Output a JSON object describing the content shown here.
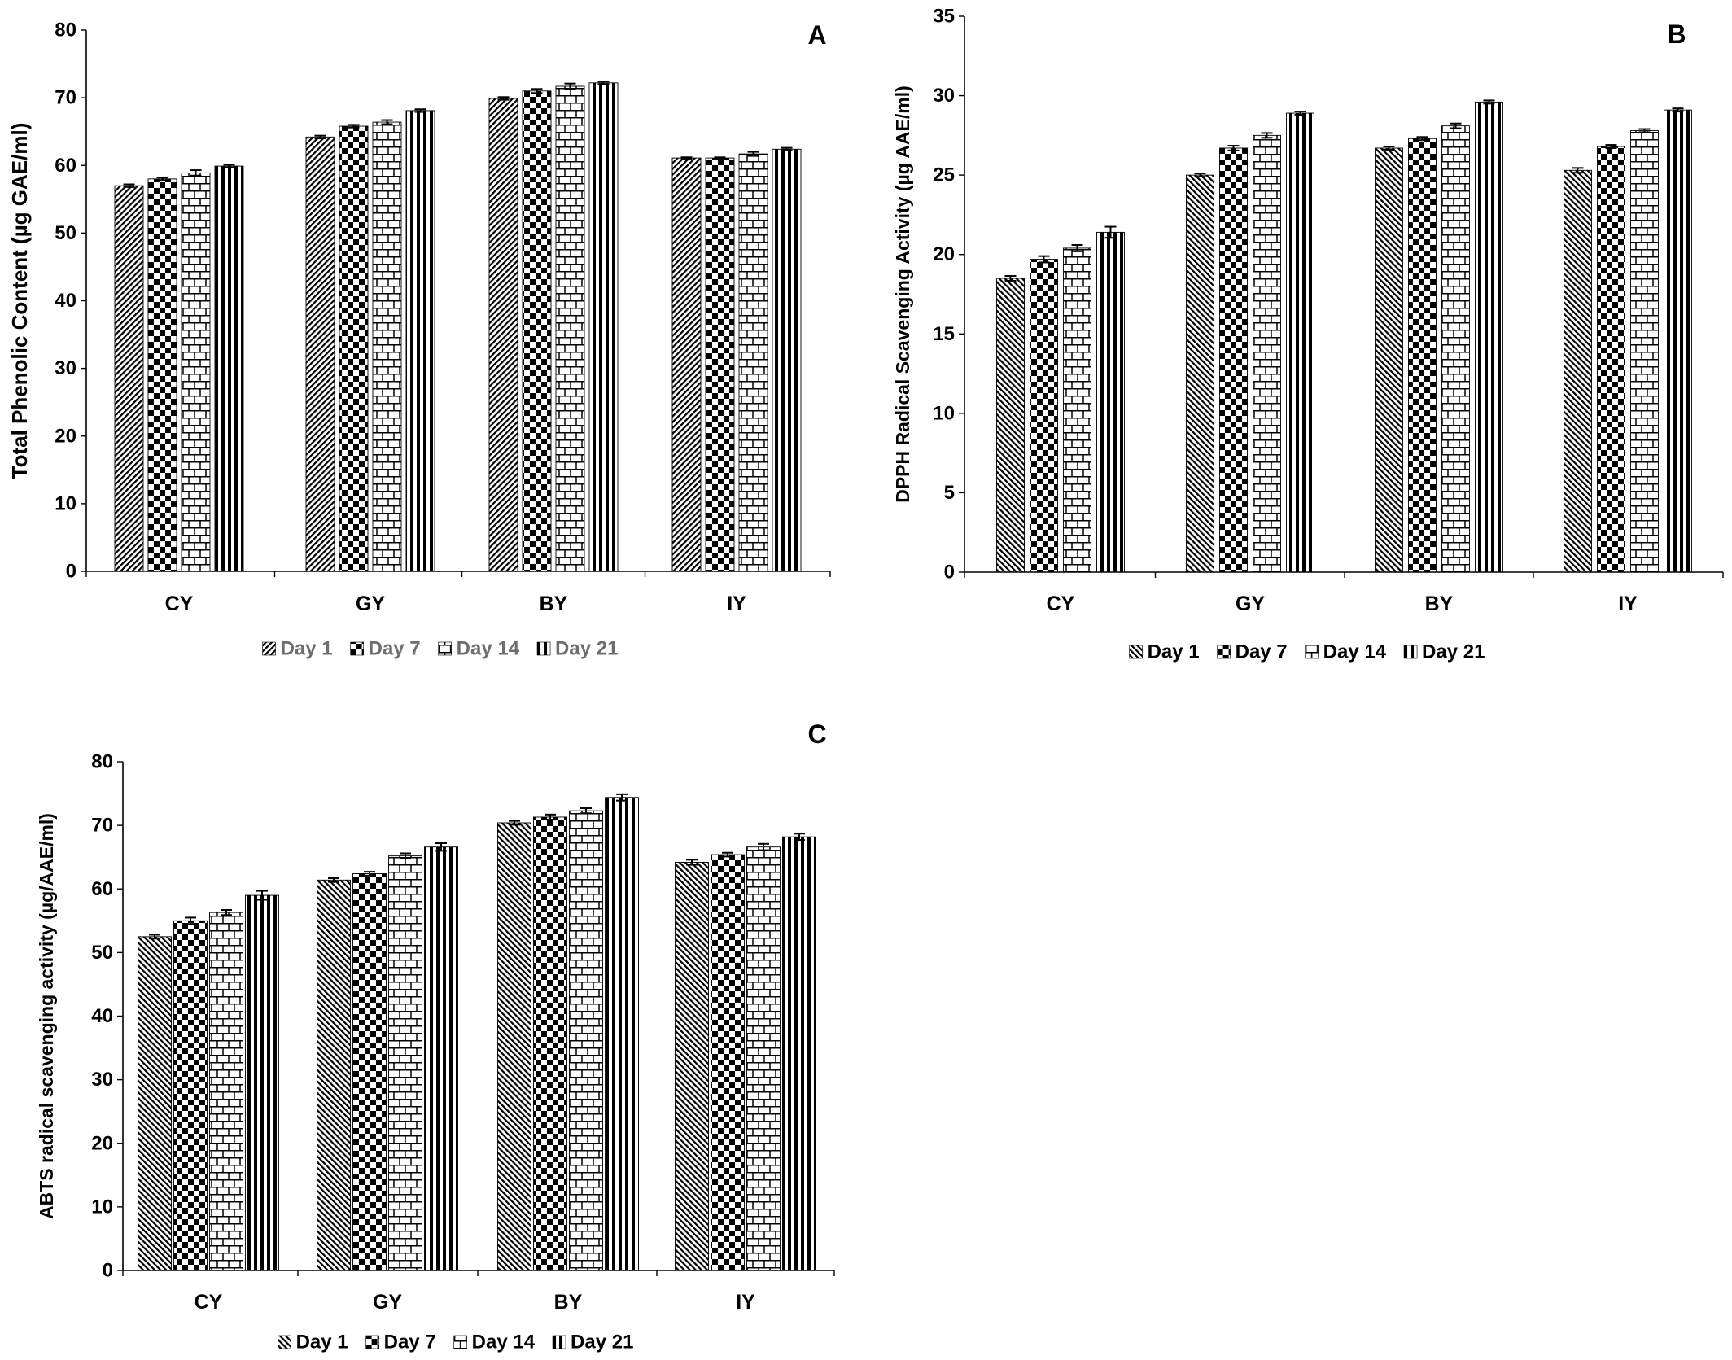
{
  "colors": {
    "background": "#ffffff",
    "axis": "#000000",
    "bar_outline": "#000000",
    "pattern_ink": "#000000"
  },
  "chart_data": [
    {
      "type": "bar",
      "panel_label": "A",
      "ylabel": "Total Phenolic Content (µg GAE/ml)",
      "categories": [
        "CY",
        "GY",
        "BY",
        "IY"
      ],
      "ylim": [
        0,
        80
      ],
      "yticks": [
        0,
        10,
        20,
        30,
        40,
        50,
        60,
        70,
        80
      ],
      "grid": false,
      "legend": "bottom",
      "legend_text_color": "#6e6e6e",
      "series": [
        {
          "name": "Day 1",
          "pattern": "forward-diagonal",
          "values": [
            57.0,
            64.2,
            69.9,
            61.1
          ],
          "errors": [
            0.2,
            0.2,
            0.2,
            0.1
          ]
        },
        {
          "name": "Day 7",
          "pattern": "checkerboard",
          "values": [
            58.0,
            65.8,
            71.0,
            61.1
          ],
          "errors": [
            0.2,
            0.2,
            0.3,
            0.1
          ]
        },
        {
          "name": "Day 14",
          "pattern": "brick",
          "values": [
            58.9,
            66.4,
            71.7,
            61.7
          ],
          "errors": [
            0.4,
            0.3,
            0.4,
            0.3
          ]
        },
        {
          "name": "Day 21",
          "pattern": "vertical-stripes",
          "values": [
            59.9,
            68.1,
            72.2,
            62.4
          ],
          "errors": [
            0.2,
            0.2,
            0.2,
            0.2
          ]
        }
      ]
    },
    {
      "type": "bar",
      "panel_label": "B",
      "ylabel": "DPPH Radical Scavenging Activity (µg AAE/ml)",
      "categories": [
        "CY",
        "GY",
        "BY",
        "IY"
      ],
      "ylim": [
        0,
        35
      ],
      "yticks": [
        0,
        5,
        10,
        15,
        20,
        25,
        30,
        35
      ],
      "grid": false,
      "legend": "bottom",
      "legend_text_color": "#000000",
      "series": [
        {
          "name": "Day 1",
          "pattern": "backward-diagonal",
          "values": [
            18.5,
            25.0,
            26.7,
            25.3
          ],
          "errors": [
            0.15,
            0.1,
            0.1,
            0.15
          ]
        },
        {
          "name": "Day 7",
          "pattern": "checkerboard",
          "values": [
            19.7,
            26.7,
            27.3,
            26.8
          ],
          "errors": [
            0.2,
            0.15,
            0.1,
            0.1
          ]
        },
        {
          "name": "Day 14",
          "pattern": "brick",
          "values": [
            20.4,
            27.5,
            28.1,
            27.8
          ],
          "errors": [
            0.2,
            0.15,
            0.15,
            0.1
          ]
        },
        {
          "name": "Day 21",
          "pattern": "vertical-stripes",
          "values": [
            21.4,
            28.9,
            29.6,
            29.1
          ],
          "errors": [
            0.35,
            0.1,
            0.1,
            0.1
          ]
        }
      ]
    },
    {
      "type": "bar",
      "panel_label": "C",
      "ylabel": "ABTS radical scavenging activity (µg/AAE/ml)",
      "categories": [
        "CY",
        "GY",
        "BY",
        "IY"
      ],
      "ylim": [
        0,
        80
      ],
      "yticks": [
        0,
        10,
        20,
        30,
        40,
        50,
        60,
        70,
        80
      ],
      "grid": false,
      "legend": "bottom",
      "legend_text_color": "#000000",
      "series": [
        {
          "name": "Day 1",
          "pattern": "backward-diagonal",
          "values": [
            52.5,
            61.4,
            70.4,
            64.2
          ],
          "errors": [
            0.3,
            0.3,
            0.3,
            0.4
          ]
        },
        {
          "name": "Day 7",
          "pattern": "checkerboard",
          "values": [
            55.0,
            62.4,
            71.3,
            65.4
          ],
          "errors": [
            0.5,
            0.3,
            0.4,
            0.3
          ]
        },
        {
          "name": "Day 14",
          "pattern": "brick",
          "values": [
            56.3,
            65.2,
            72.3,
            66.6
          ],
          "errors": [
            0.4,
            0.4,
            0.4,
            0.5
          ]
        },
        {
          "name": "Day 21",
          "pattern": "vertical-stripes",
          "values": [
            59.0,
            66.6,
            74.4,
            68.2
          ],
          "errors": [
            0.7,
            0.6,
            0.5,
            0.5
          ]
        }
      ]
    }
  ]
}
